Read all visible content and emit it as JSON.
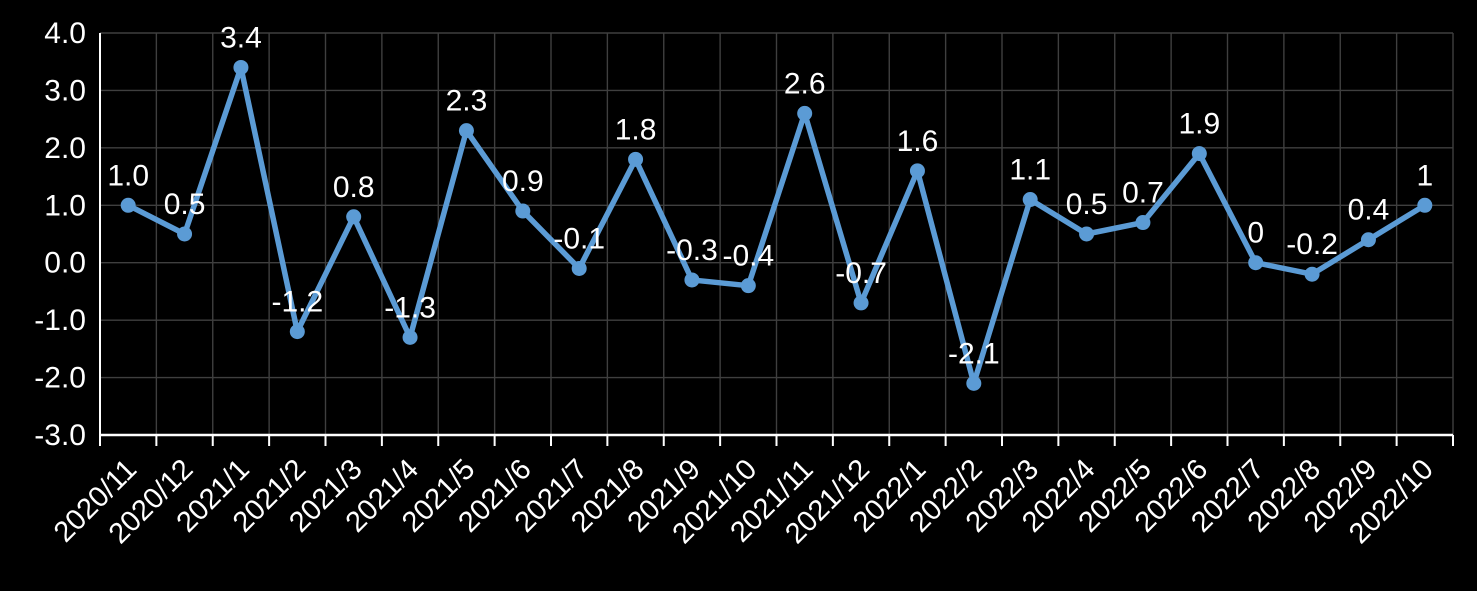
{
  "chart_data": {
    "type": "line",
    "title": "",
    "xlabel": "",
    "ylabel": "",
    "categories": [
      "2020/11",
      "2020/12",
      "2021/1",
      "2021/2",
      "2021/3",
      "2021/4",
      "2021/5",
      "2021/6",
      "2021/7",
      "2021/8",
      "2021/9",
      "2021/10",
      "2021/11",
      "2021/12",
      "2022/1",
      "2022/2",
      "2022/3",
      "2022/4",
      "2022/5",
      "2022/6",
      "2022/7",
      "2022/8",
      "2022/9",
      "2022/10"
    ],
    "values": [
      1.0,
      0.5,
      3.4,
      -1.2,
      0.8,
      -1.3,
      2.3,
      0.9,
      -0.1,
      1.8,
      -0.3,
      -0.4,
      2.6,
      -0.7,
      1.6,
      -2.1,
      1.1,
      0.5,
      0.7,
      1.9,
      0,
      -0.2,
      0.4,
      1
    ],
    "data_labels": [
      "1.0",
      "0.5",
      "3.4",
      "-1.2",
      "0.8",
      "-1.3",
      "2.3",
      "0.9",
      "-0.1",
      "1.8",
      "-0.3",
      "-0.4",
      "2.6",
      "-0.7",
      "1.6",
      "-2.1",
      "1.1",
      "0.5",
      "0.7",
      "1.9",
      "0",
      "-0.2",
      "0.4",
      "1"
    ],
    "y_ticks": [
      "4.0",
      "3.0",
      "2.0",
      "1.0",
      "0.0",
      "-1.0",
      "-2.0",
      "-3.0"
    ],
    "y_tick_values": [
      4.0,
      3.0,
      2.0,
      1.0,
      0.0,
      -1.0,
      -2.0,
      -3.0
    ],
    "ylim": [
      -3.0,
      4.0
    ],
    "grid": true,
    "legend": "none",
    "colors": {
      "background": "#000000",
      "line": "#5B9BD5",
      "marker": "#5B9BD5",
      "gridline": "#3F3F3F",
      "axis": "#FFFFFF",
      "text": "#FFFFFF"
    }
  }
}
